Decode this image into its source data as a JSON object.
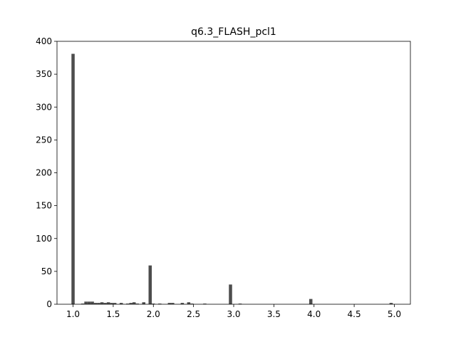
{
  "chart_data": {
    "type": "bar",
    "title": "q6.3_FLASH_pcl1",
    "xlabel": "",
    "ylabel": "",
    "xlim": [
      0.8,
      5.2
    ],
    "ylim": [
      0,
      400
    ],
    "xticks": [
      1.0,
      1.5,
      2.0,
      2.5,
      3.0,
      3.5,
      4.0,
      4.5,
      5.0
    ],
    "xtick_labels": [
      "1.0",
      "1.5",
      "2.0",
      "2.5",
      "3.0",
      "3.5",
      "4.0",
      "4.5",
      "5.0"
    ],
    "yticks": [
      0,
      50,
      100,
      150,
      200,
      250,
      300,
      350,
      400
    ],
    "ytick_labels": [
      "0",
      "50",
      "100",
      "150",
      "200",
      "250",
      "300",
      "350",
      "400"
    ],
    "bin_width": 0.04,
    "bar_color": "#4d4d4d",
    "bars": [
      {
        "x": 1.0,
        "value": 381
      },
      {
        "x": 1.12,
        "value": 1
      },
      {
        "x": 1.16,
        "value": 4
      },
      {
        "x": 1.2,
        "value": 4
      },
      {
        "x": 1.24,
        "value": 4
      },
      {
        "x": 1.28,
        "value": 2
      },
      {
        "x": 1.32,
        "value": 2
      },
      {
        "x": 1.36,
        "value": 3
      },
      {
        "x": 1.4,
        "value": 2
      },
      {
        "x": 1.44,
        "value": 3
      },
      {
        "x": 1.48,
        "value": 2
      },
      {
        "x": 1.52,
        "value": 2
      },
      {
        "x": 1.6,
        "value": 2
      },
      {
        "x": 1.68,
        "value": 1
      },
      {
        "x": 1.72,
        "value": 2
      },
      {
        "x": 1.76,
        "value": 3
      },
      {
        "x": 1.8,
        "value": 1
      },
      {
        "x": 1.88,
        "value": 3
      },
      {
        "x": 1.96,
        "value": 59
      },
      {
        "x": 2.0,
        "value": 1
      },
      {
        "x": 2.08,
        "value": 1
      },
      {
        "x": 2.2,
        "value": 2
      },
      {
        "x": 2.24,
        "value": 2
      },
      {
        "x": 2.36,
        "value": 2
      },
      {
        "x": 2.44,
        "value": 3
      },
      {
        "x": 2.48,
        "value": 1
      },
      {
        "x": 2.64,
        "value": 1
      },
      {
        "x": 2.96,
        "value": 30
      },
      {
        "x": 3.08,
        "value": 1
      },
      {
        "x": 3.96,
        "value": 8
      },
      {
        "x": 4.96,
        "value": 2
      }
    ]
  }
}
